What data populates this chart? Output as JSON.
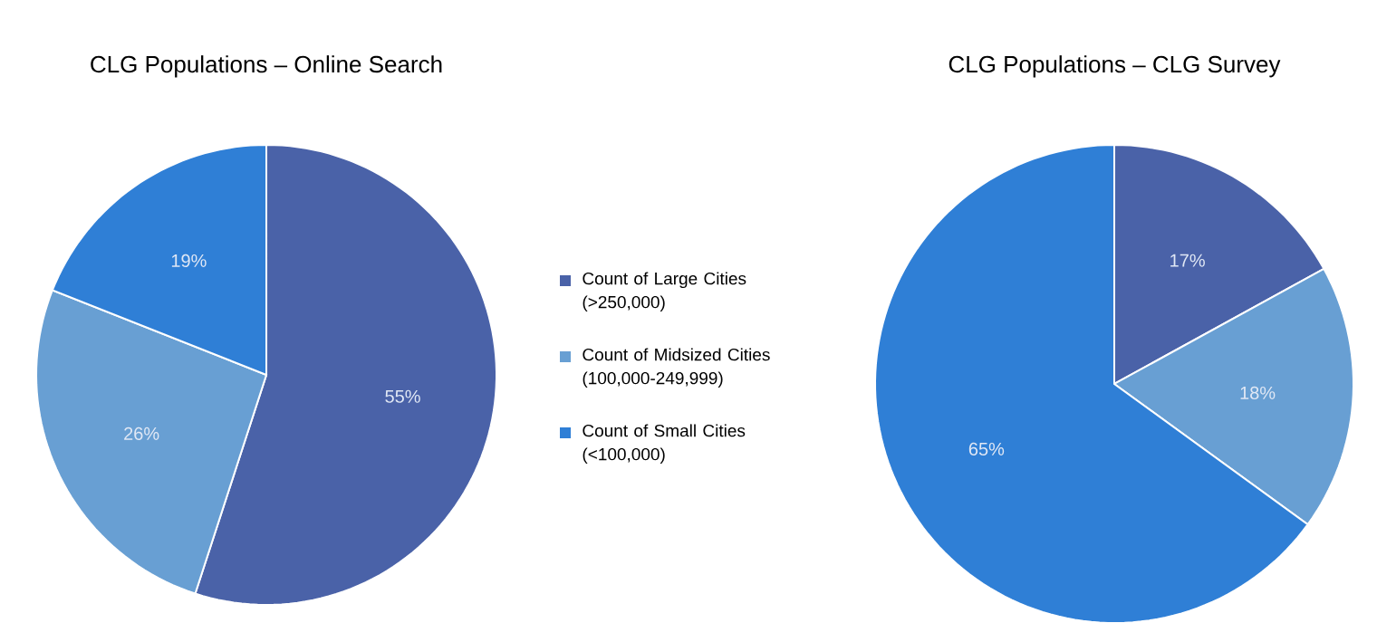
{
  "chart_data": [
    {
      "type": "pie",
      "title": "CLG Populations – Online Search",
      "categories": [
        "Count of Large Cities (>250,000)",
        "Count of Midsized Cities (100,000-249,999)",
        "Count of Small Cities (<100,000)"
      ],
      "values": [
        55,
        26,
        19
      ],
      "value_labels": [
        "55%",
        "26%",
        "19%"
      ],
      "colors": [
        "#4a62a8",
        "#689fd3",
        "#2f7fd6"
      ],
      "legend": "right"
    },
    {
      "type": "pie",
      "title": "CLG Populations – CLG Survey",
      "categories": [
        null,
        null,
        null
      ],
      "values": [
        17,
        18,
        65
      ],
      "value_labels": [
        "17%",
        "18%",
        "65%"
      ],
      "colors": [
        "#4a62a8",
        "#689fd3",
        "#2f7fd6"
      ]
    }
  ]
}
